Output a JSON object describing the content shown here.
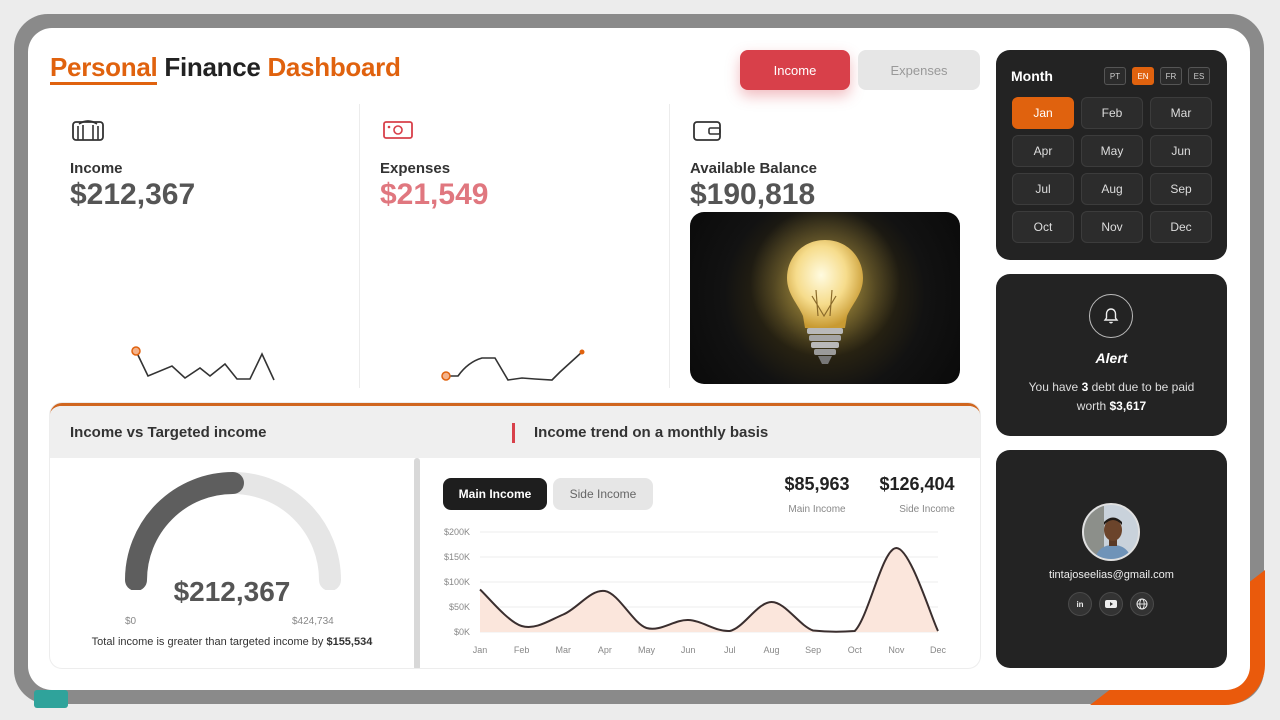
{
  "header": {
    "title_part1": "Personal",
    "title_part2": " Finance ",
    "title_part3": "Dashboard"
  },
  "toggle": {
    "income": "Income",
    "expenses": "Expenses"
  },
  "kpis": [
    {
      "label": "Income",
      "value": "$212,367",
      "icon": "bank-icon",
      "color": "#555555"
    },
    {
      "label": "Expenses",
      "value": "$21,549",
      "icon": "cash-icon",
      "color": "#e0777f"
    },
    {
      "label": "Available Balance",
      "value": "$190,818",
      "icon": "wallet-icon",
      "color": "#555555"
    }
  ],
  "image": {
    "subject": "lightbulb-photo"
  },
  "gauge_panel": {
    "title": "Income vs Targeted income",
    "value": "$212,367",
    "min": "$0",
    "max": "$424,734",
    "note_prefix": "Total income is greater than targeted income by ",
    "note_amount": "$155,534",
    "fraction": 0.5
  },
  "trend_panel": {
    "title": "Income trend on a monthly basis",
    "tabs": [
      "Main Income",
      "Side Income"
    ],
    "metrics": [
      {
        "value": "$85,963",
        "label": "Main Income"
      },
      {
        "value": "$126,404",
        "label": "Side Income"
      }
    ]
  },
  "chart_data": {
    "type": "area",
    "categories": [
      "Jan",
      "Feb",
      "Mar",
      "Apr",
      "May",
      "Jun",
      "Jul",
      "Aug",
      "Sep",
      "Oct",
      "Nov",
      "Dec"
    ],
    "values": [
      85,
      12,
      35,
      82,
      8,
      24,
      2,
      60,
      3,
      2,
      168,
      2
    ],
    "yticks": [
      "$0K",
      "$50K",
      "$100K",
      "$150K",
      "$200K"
    ],
    "ylim": [
      0,
      200
    ],
    "grid": true,
    "line_color": "#3a2e2e",
    "fill_color": "#fbe6dc"
  },
  "month_picker": {
    "title": "Month",
    "languages": [
      "PT",
      "EN",
      "FR",
      "ES"
    ],
    "active_language": "EN",
    "months": [
      "Jan",
      "Feb",
      "Mar",
      "Apr",
      "May",
      "Jun",
      "Jul",
      "Aug",
      "Sep",
      "Oct",
      "Nov",
      "Dec"
    ],
    "active_month": "Jan"
  },
  "alert": {
    "title": "Alert",
    "text_prefix": "You have ",
    "count": "3",
    "text_mid": " debt due to be paid worth ",
    "amount": "$3,617"
  },
  "profile": {
    "email": "tintajoseelias@gmail.com",
    "socials": [
      "linkedin-icon",
      "youtube-icon",
      "globe-icon"
    ],
    "linkedin_label": "in"
  },
  "colors": {
    "accent_orange": "#e0620e",
    "accent_red": "#d8404a",
    "dark_panel": "#232323"
  }
}
